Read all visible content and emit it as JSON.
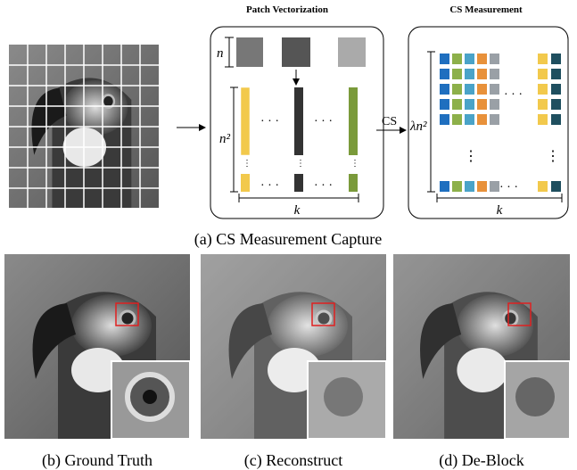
{
  "panel_a": {
    "patch_vectorization": {
      "title": "Patch Vectorization",
      "patch_size_label": "n",
      "vector_length_label": "n²",
      "count_label": "k"
    },
    "arrow_label": "CS",
    "cs_measurement": {
      "title": "CS Measurement",
      "height_label": "λn²",
      "count_label": "k"
    },
    "caption": "(a) CS Measurement Capture"
  },
  "panels": [
    {
      "caption": "(b) Ground Truth"
    },
    {
      "caption": "(c) Reconstruct"
    },
    {
      "caption": "(d) De-Block"
    }
  ]
}
